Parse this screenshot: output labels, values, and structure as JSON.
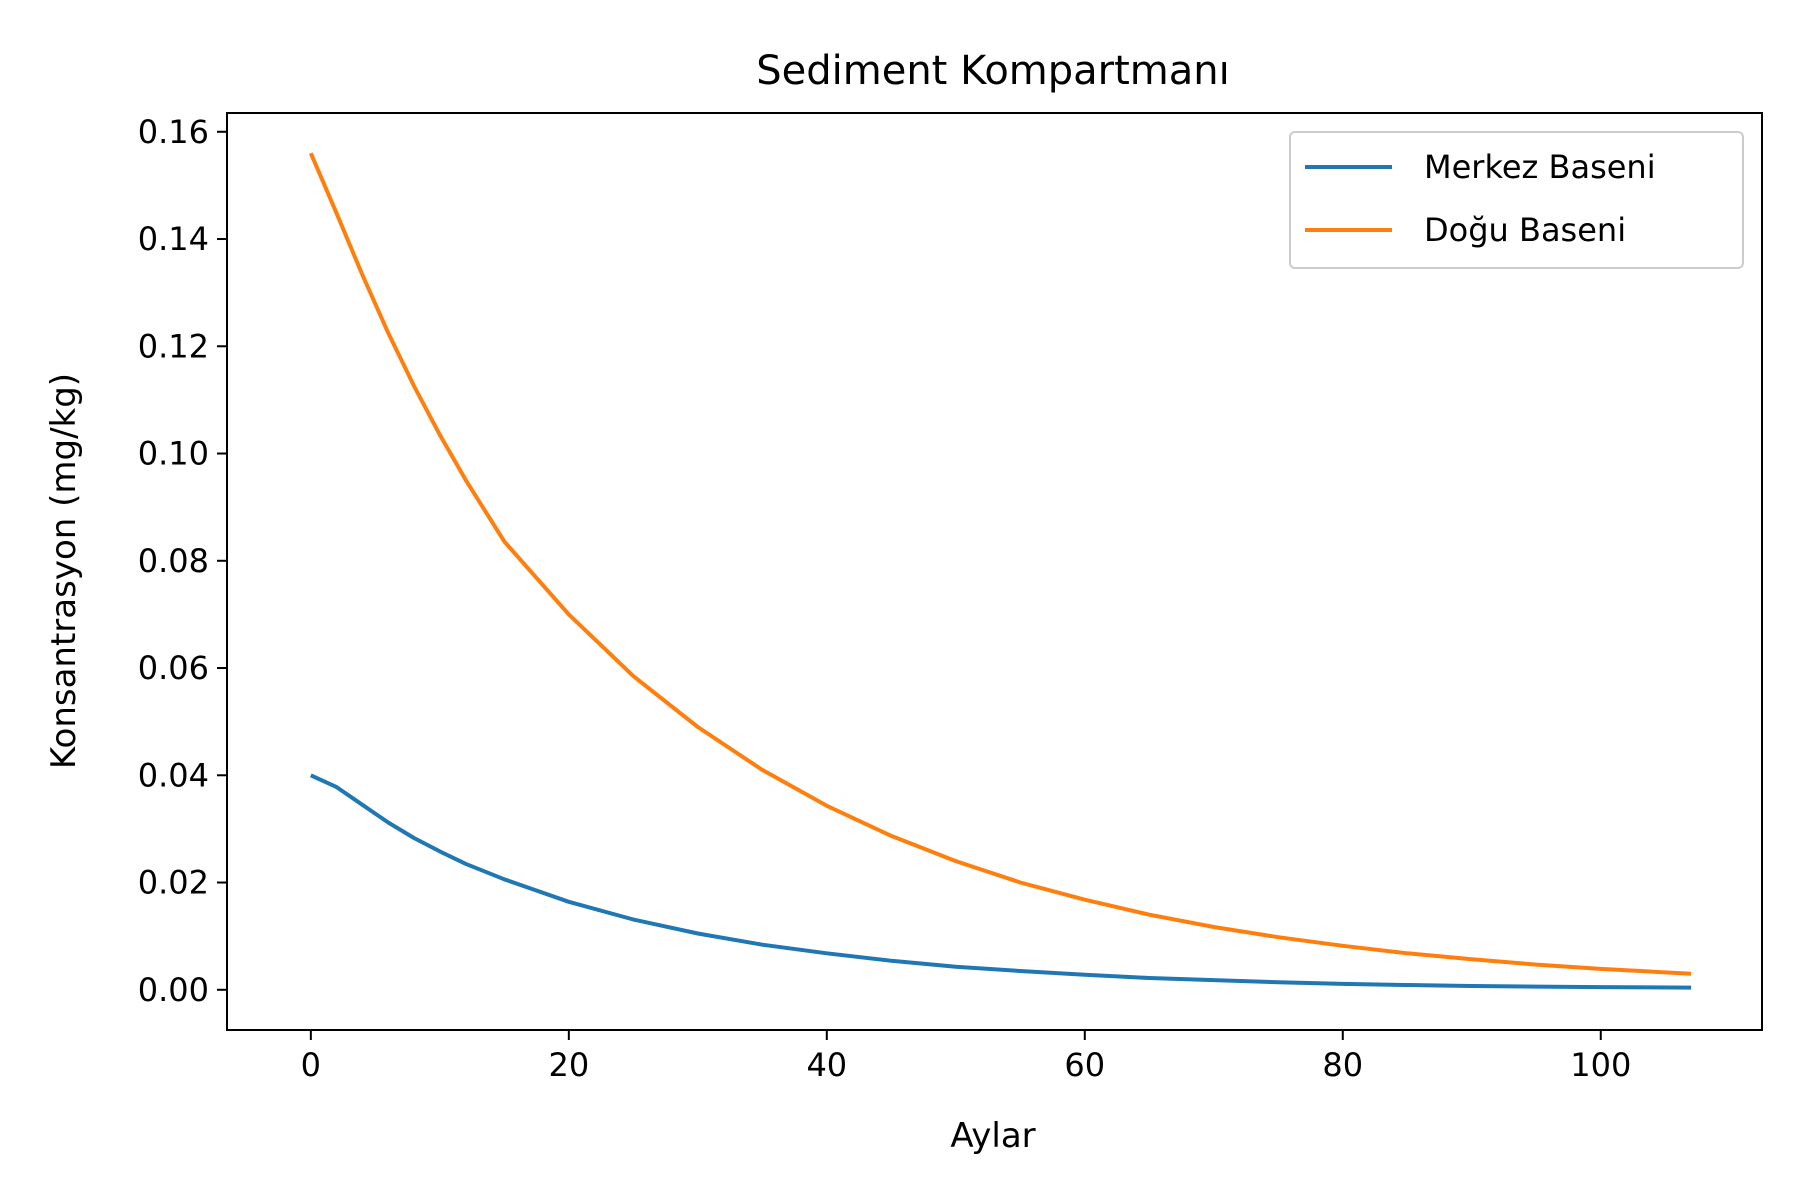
{
  "chart_data": {
    "type": "line",
    "title": "Sediment Kompartmanı",
    "xlabel": "Aylar",
    "ylabel": "Konsantrasyon (mg/kg)",
    "xlim": [
      -6.5,
      112.5
    ],
    "ylim": [
      -0.0075,
      0.1635
    ],
    "xticks": [
      0,
      20,
      40,
      60,
      80,
      100
    ],
    "xtick_labels": [
      "0",
      "20",
      "40",
      "60",
      "80",
      "100"
    ],
    "yticks": [
      0.0,
      0.02,
      0.04,
      0.06,
      0.08,
      0.1,
      0.12,
      0.14,
      0.16
    ],
    "ytick_labels": [
      "0.00",
      "0.02",
      "0.04",
      "0.06",
      "0.08",
      "0.10",
      "0.12",
      "0.14",
      "0.16"
    ],
    "grid": false,
    "legend_position": "top-right",
    "x": [
      0,
      2,
      4,
      6,
      8,
      10,
      12,
      15,
      20,
      25,
      30,
      35,
      40,
      45,
      50,
      55,
      60,
      65,
      70,
      75,
      80,
      85,
      90,
      95,
      100,
      107
    ],
    "series": [
      {
        "name": "Merkez Baseni",
        "color": "#1f77b4",
        "values": [
          0.04,
          0.0378,
          0.0345,
          0.0312,
          0.0283,
          0.0258,
          0.0235,
          0.0206,
          0.0164,
          0.0131,
          0.0105,
          0.0084,
          0.0068,
          0.0054,
          0.0043,
          0.0035,
          0.0028,
          0.0022,
          0.0018,
          0.0014,
          0.0011,
          0.0009,
          0.0007,
          0.0006,
          0.0005,
          0.0004
        ]
      },
      {
        "name": "Doğu Baseni",
        "color": "#ff7f0e",
        "values": [
          0.156,
          0.1448,
          0.1333,
          0.1225,
          0.1126,
          0.1035,
          0.0951,
          0.0836,
          0.07,
          0.0585,
          0.049,
          0.041,
          0.0343,
          0.0287,
          0.024,
          0.02,
          0.0168,
          0.014,
          0.0117,
          0.0098,
          0.0082,
          0.0068,
          0.0057,
          0.0047,
          0.0039,
          0.003
        ]
      }
    ]
  }
}
